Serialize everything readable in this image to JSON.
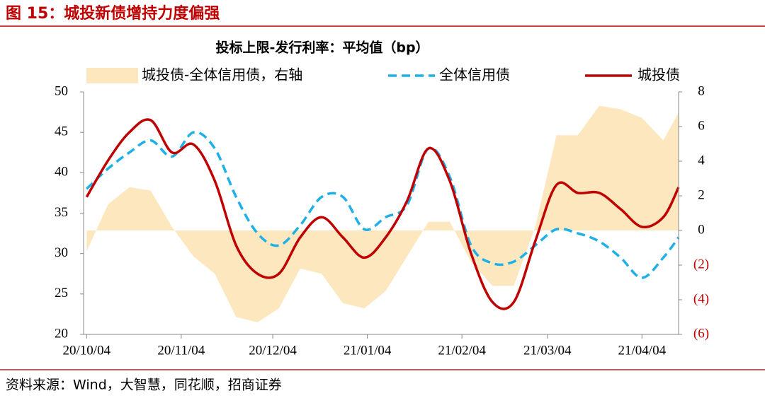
{
  "header": {
    "title": "图 15：城投新债增持力度偏强",
    "source": "资料来源：Wind，大智慧，同花顺，招商证券"
  },
  "chart_data": {
    "type": "line",
    "title": "投标上限-发行利率：平均值（bp）",
    "x": [
      "20/10/04",
      "20/10/11",
      "20/10/18",
      "20/10/25",
      "20/11/01",
      "20/11/08",
      "20/11/15",
      "20/11/22",
      "20/11/29",
      "20/12/06",
      "20/12/13",
      "20/12/20",
      "20/12/27",
      "21/01/03",
      "21/01/10",
      "21/01/17",
      "21/01/24",
      "21/01/31",
      "21/02/07",
      "21/02/14",
      "21/02/21",
      "21/02/28",
      "21/03/07",
      "21/03/14",
      "21/03/21",
      "21/03/28",
      "21/04/04",
      "21/04/11",
      "21/04/16"
    ],
    "xlim": [
      "20/10/03",
      "21/04/16"
    ],
    "xticks": [
      "20/10/04",
      "20/11/04",
      "20/12/04",
      "21/01/04",
      "21/02/04",
      "21/03/04",
      "21/04/04"
    ],
    "ylim": [
      20,
      50
    ],
    "yticks": [
      20,
      25,
      30,
      35,
      40,
      45,
      50
    ],
    "y2lim": [
      -6,
      8
    ],
    "y2ticks": [
      {
        "value": -6,
        "label": "(6)"
      },
      {
        "value": -4,
        "label": "(4)"
      },
      {
        "value": -2,
        "label": "(2)"
      },
      0,
      2,
      4,
      6,
      8
    ],
    "y2_negative_label_color": "#c00000",
    "series": [
      {
        "name": "城投债-全体信用债，右轴",
        "kind": "area",
        "axis": "y2",
        "color": "#fde7bf",
        "values": [
          -1.2,
          1.5,
          2.5,
          2.3,
          0.2,
          -1.5,
          -2.5,
          -5,
          -5.3,
          -4.5,
          -2.2,
          -2.5,
          -4.2,
          -4.5,
          -3.5,
          -1.5,
          0.5,
          0.5,
          -1.8,
          -3.2,
          -3.2,
          0.2,
          5.5,
          5.5,
          7.2,
          7,
          6.5,
          5.2,
          6.8
        ]
      },
      {
        "name": "全体信用债",
        "kind": "dashed",
        "color": "#1fb0e6",
        "values": [
          38,
          40.5,
          42.5,
          44,
          42,
          45,
          43,
          37,
          32.5,
          31,
          33.5,
          37,
          37,
          33,
          34.5,
          36,
          43,
          39.5,
          31,
          28.8,
          29,
          31,
          33,
          32.5,
          31.5,
          29.5,
          27,
          29.5,
          32
        ]
      },
      {
        "name": "城投债",
        "kind": "solid",
        "color": "#c00000",
        "values": [
          37,
          41.5,
          45,
          46.5,
          42.5,
          43.5,
          39,
          31,
          27.5,
          27.5,
          32,
          34.5,
          32,
          29.5,
          32,
          36.5,
          43,
          39,
          30,
          24,
          24,
          31.5,
          38.5,
          37.5,
          37.5,
          35.5,
          33.3,
          34.5,
          38.2
        ]
      }
    ]
  }
}
